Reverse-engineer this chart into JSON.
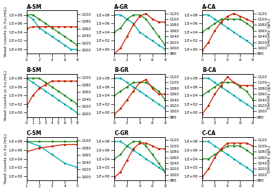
{
  "panels": [
    {
      "title": "A-SM",
      "xdata": [
        0,
        1,
        2,
        3,
        4,
        5,
        6,
        7,
        8
      ],
      "cyan": [
        100000000.0,
        10000000.0,
        100000.0,
        10000.0,
        1000.0,
        100.0,
        10.0,
        1.0,
        1.0
      ],
      "green": [
        100000000.0,
        100000000.0,
        10000000.0,
        1000000.0,
        100000.0,
        10000.0,
        1000.0,
        100.0,
        10.0
      ],
      "red": [
        1060,
        1065,
        1065,
        1065,
        1065,
        1065,
        1065,
        1065,
        1065
      ],
      "xlim": [
        0,
        8
      ],
      "xticks": [
        0,
        2,
        4,
        6,
        8
      ],
      "right_ylim": [
        990,
        1110
      ],
      "right_yticks": [
        1000,
        1020,
        1040,
        1060,
        1080,
        1100
      ]
    },
    {
      "title": "A-GR",
      "xdata": [
        0,
        1,
        2,
        3,
        4,
        5,
        6,
        7,
        8
      ],
      "cyan": [
        100000000.0,
        100000000.0,
        10000000.0,
        1000000.0,
        10000.0,
        1000.0,
        100.0,
        10.0,
        1.0
      ],
      "green": [
        10000.0,
        100000.0,
        10000000.0,
        100000000.0,
        100000000.0,
        10000000.0,
        100000.0,
        1000.0,
        10.0
      ],
      "red": [
        980,
        1000,
        1040,
        1080,
        1110,
        1120,
        1100,
        1090,
        1090
      ],
      "xlim": [
        0,
        8
      ],
      "xticks": [
        0,
        2,
        4,
        6,
        8
      ],
      "right_ylim": [
        980,
        1130
      ],
      "right_yticks": [
        980,
        1000,
        1020,
        1040,
        1060,
        1080,
        1100,
        1120
      ]
    },
    {
      "title": "A-CA",
      "xdata": [
        0,
        1,
        2,
        3,
        4,
        5,
        6,
        7,
        8
      ],
      "cyan": [
        100000000.0,
        100000000.0,
        10000000.0,
        1000000.0,
        100000.0,
        10000.0,
        1000.0,
        100.0,
        10.0
      ],
      "green": [
        10000.0,
        100000.0,
        1000000.0,
        10000000.0,
        10000000.0,
        10000000.0,
        10000000.0,
        1000000.0,
        100000.0
      ],
      "red": [
        990,
        1020,
        1060,
        1090,
        1110,
        1120,
        1110,
        1100,
        1090
      ],
      "xlim": [
        0,
        8
      ],
      "xticks": [
        0,
        2,
        4,
        6,
        8
      ],
      "right_ylim": [
        980,
        1130
      ],
      "right_yticks": [
        980,
        1000,
        1020,
        1040,
        1060,
        1080,
        1100,
        1120
      ]
    },
    {
      "title": "B-SM",
      "xdata": [
        0,
        1,
        2,
        3,
        4,
        5,
        6,
        7,
        8
      ],
      "cyan": [
        100000000.0,
        10000000.0,
        1000000.0,
        100000.0,
        10000.0,
        1000.0,
        100.0,
        10.0,
        1.0
      ],
      "green": [
        100000000.0,
        100000000.0,
        100000000.0,
        10000000.0,
        1000000.0,
        100000.0,
        10000.0,
        1000.0,
        100.0
      ],
      "red": [
        1020,
        1050,
        1070,
        1080,
        1090,
        1090,
        1090,
        1090,
        1090
      ],
      "xlim": [
        0,
        8
      ],
      "xticks": [
        0,
        1,
        2,
        3,
        4,
        5,
        6,
        7,
        8
      ],
      "right_ylim": [
        990,
        1110
      ],
      "right_yticks": [
        1000,
        1020,
        1040,
        1060,
        1080,
        1100
      ]
    },
    {
      "title": "B-GR",
      "xdata": [
        0,
        1,
        2,
        3,
        4,
        5,
        6,
        7,
        8
      ],
      "cyan": [
        100000000.0,
        100000000.0,
        10000000.0,
        1000000.0,
        100000.0,
        10000.0,
        1000.0,
        100.0,
        10.0
      ],
      "green": [
        10000.0,
        100000.0,
        1000000.0,
        10000000.0,
        10000000.0,
        10000000.0,
        1000000.0,
        100000.0,
        1000.0
      ],
      "red": [
        990,
        1010,
        1040,
        1070,
        1100,
        1110,
        1080,
        1060,
        1060
      ],
      "xlim": [
        0,
        8
      ],
      "xticks": [
        0,
        2,
        4,
        6,
        8
      ],
      "right_ylim": [
        980,
        1130
      ],
      "right_yticks": [
        980,
        1000,
        1020,
        1040,
        1060,
        1080,
        1100,
        1120
      ]
    },
    {
      "title": "B-CA",
      "xdata": [
        0,
        1,
        2,
        3,
        4,
        5,
        6,
        7,
        8
      ],
      "cyan": [
        100000000.0,
        100000000.0,
        10000000.0,
        1000000.0,
        100000.0,
        10000.0,
        1000.0,
        100.0,
        10.0
      ],
      "green": [
        10000.0,
        100000.0,
        1000000.0,
        10000000.0,
        10000000.0,
        10000000.0,
        1000000.0,
        100000.0,
        1000.0
      ],
      "red": [
        990,
        1020,
        1060,
        1090,
        1120,
        1100,
        1090,
        1090,
        1090
      ],
      "xlim": [
        0,
        8
      ],
      "xticks": [
        0,
        2,
        4,
        6,
        8
      ],
      "right_ylim": [
        980,
        1130
      ],
      "right_yticks": [
        980,
        1000,
        1020,
        1040,
        1060,
        1080,
        1100,
        1120
      ]
    },
    {
      "title": "C-SM",
      "xdata": [
        1,
        2,
        3,
        4,
        5
      ],
      "cyan": [
        100000000.0,
        10000000.0,
        100000.0,
        1000.0,
        100.0
      ],
      "green": [
        100000000.0,
        100000000.0,
        100000000.0,
        100000000.0,
        100000000.0
      ],
      "red": [
        1070,
        1080,
        1085,
        1090,
        1090
      ],
      "xlim": [
        1,
        5
      ],
      "xticks": [
        1,
        2,
        3,
        4,
        5
      ],
      "right_ylim": [
        990,
        1110
      ],
      "right_yticks": [
        1000,
        1020,
        1040,
        1060,
        1080,
        1100
      ]
    },
    {
      "title": "C-GR",
      "xdata": [
        0,
        1,
        2,
        3,
        4,
        5,
        6,
        7,
        8
      ],
      "cyan": [
        100000000.0,
        100000000.0,
        10000000.0,
        1000000.0,
        100000.0,
        10000.0,
        1000.0,
        100.0,
        10.0
      ],
      "green": [
        10000.0,
        100000.0,
        10000000.0,
        100000000.0,
        100000000.0,
        10000000.0,
        100000.0,
        1000.0,
        10.0
      ],
      "red": [
        990,
        1010,
        1050,
        1090,
        1110,
        1110,
        1100,
        1090,
        1090
      ],
      "xlim": [
        0,
        8
      ],
      "xticks": [
        0,
        2,
        4,
        6,
        8
      ],
      "right_ylim": [
        980,
        1130
      ],
      "right_yticks": [
        980,
        1000,
        1020,
        1040,
        1060,
        1080,
        1100,
        1120
      ]
    },
    {
      "title": "C-CA",
      "xdata": [
        0,
        1,
        2,
        3,
        4,
        5,
        6,
        7,
        8
      ],
      "cyan": [
        100000000.0,
        100000000.0,
        10000000.0,
        1000000.0,
        100000.0,
        10000.0,
        1000.0,
        100.0,
        10.0
      ],
      "green": [
        10000.0,
        10000.0,
        100000.0,
        1000000.0,
        10000000.0,
        10000000.0,
        10000000.0,
        1000000.0,
        100000.0
      ],
      "red": [
        990,
        1020,
        1060,
        1090,
        1110,
        1110,
        1110,
        1110,
        1100
      ],
      "xlim": [
        0,
        8
      ],
      "xticks": [
        0,
        2,
        4,
        6,
        8
      ],
      "right_ylim": [
        980,
        1130
      ],
      "right_yticks": [
        980,
        1000,
        1020,
        1040,
        1060,
        1080,
        1100,
        1120
      ]
    }
  ],
  "left_ylim": [
    0.1,
    1000000000.0
  ],
  "left_yticks": [
    1.0,
    100.0,
    10000.0,
    1000000.0,
    100000000.0
  ],
  "left_ytick_labels": [
    "1.E+00",
    "1.E+02",
    "1.E+04",
    "1.E+06",
    "1.E+08"
  ],
  "cyan_color": "#00AAAA",
  "green_color": "#228B22",
  "red_color": "#CC2200",
  "line_width": 1.0,
  "title_fontsize": 5.5,
  "tick_fontsize": 4.0,
  "label_fontsize": 4.5,
  "ylabel_left": "Yeast counts (c.f.u./mL)",
  "ylabel_right": "Density (g/L)"
}
